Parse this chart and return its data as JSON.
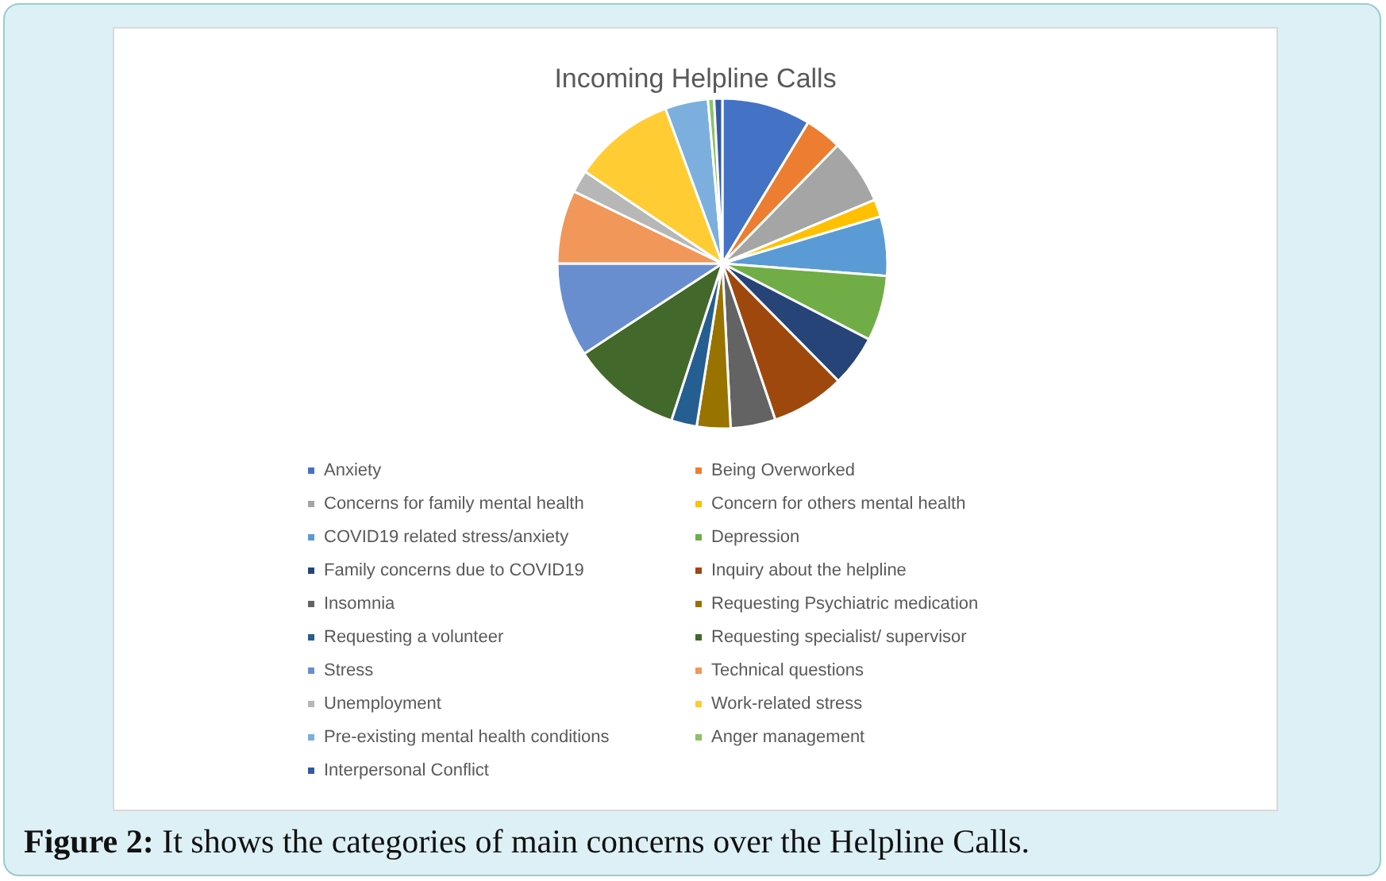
{
  "chart_data": {
    "type": "pie",
    "title": "Incoming Helpline Calls",
    "categories": [
      "Anxiety",
      "Being Overworked",
      "Concerns for family mental health",
      "Concern for others mental health",
      "COVID19 related stress/anxiety",
      "Depression",
      "Family concerns due to COVID19",
      "Inquiry about the helpline",
      "Insomnia",
      "Requesting Psychiatric medication",
      "Requesting a volunteer",
      "Requesting specialist/ supervisor",
      "Stress",
      "Technical questions",
      "Unemployment",
      "Work-related stress",
      "Pre-existing mental health conditions",
      "Anger management",
      "Interpersonal Conflict"
    ],
    "values": [
      8.7,
      3.6,
      6.4,
      1.7,
      5.8,
      6.4,
      5.0,
      7.2,
      4.4,
      3.3,
      2.5,
      10.8,
      9.2,
      7.2,
      2.2,
      10.0,
      4.2,
      0.6,
      0.8
    ],
    "colors": [
      "#4472c4",
      "#ed7d31",
      "#a5a5a5",
      "#ffc000",
      "#5b9bd5",
      "#70ad47",
      "#264478",
      "#9e480e",
      "#636363",
      "#997300",
      "#255e91",
      "#43682b",
      "#698ed0",
      "#f1975a",
      "#b7b7b7",
      "#ffcd33",
      "#7cafdd",
      "#8cc168",
      "#335aa1"
    ],
    "legend": "bottom",
    "annotations": [
      "Figure 2: It shows the categories of main concerns over the Helpline Calls."
    ]
  }
}
